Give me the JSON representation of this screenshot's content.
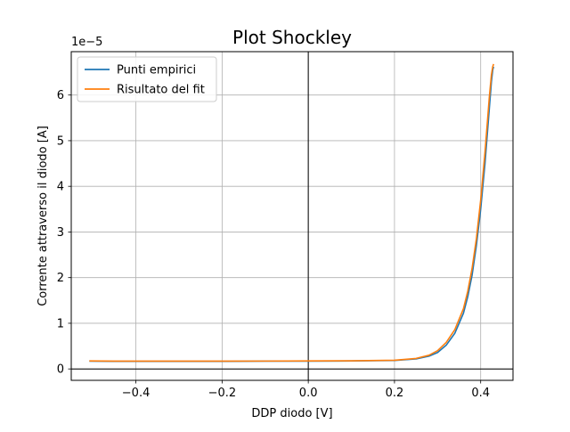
{
  "chart_data": {
    "type": "line",
    "title": "Plot Shockley",
    "xlabel": "DDP diodo [V]",
    "ylabel": "Corrente attraverso il diodo [A]",
    "y_offset_label": "1e−5",
    "xlim": [
      -0.55,
      0.475
    ],
    "ylim": [
      -0.25,
      6.95
    ],
    "y_scale_factor": 1e-05,
    "grid": true,
    "legend_position": "top-left",
    "x_ticks": [
      {
        "value": -0.4,
        "label": "−0.4"
      },
      {
        "value": -0.2,
        "label": "−0.2"
      },
      {
        "value": 0.0,
        "label": "0.0"
      },
      {
        "value": 0.2,
        "label": "0.2"
      },
      {
        "value": 0.4,
        "label": "0.4"
      }
    ],
    "y_ticks": [
      {
        "value": 0,
        "label": "0"
      },
      {
        "value": 1,
        "label": "1"
      },
      {
        "value": 2,
        "label": "2"
      },
      {
        "value": 3,
        "label": "3"
      },
      {
        "value": 4,
        "label": "4"
      },
      {
        "value": 5,
        "label": "5"
      },
      {
        "value": 6,
        "label": "6"
      }
    ],
    "series": [
      {
        "name": "Punti empirici",
        "color": "#1f77b4",
        "x": [
          -0.508,
          -0.45,
          -0.4,
          -0.3,
          -0.2,
          -0.1,
          0.0,
          0.1,
          0.2,
          0.25,
          0.28,
          0.3,
          0.32,
          0.34,
          0.36,
          0.37,
          0.38,
          0.39,
          0.4,
          0.41,
          0.42,
          0.425,
          0.428,
          0.43
        ],
        "y": [
          0.17,
          0.165,
          0.165,
          0.165,
          0.165,
          0.17,
          0.17,
          0.175,
          0.185,
          0.22,
          0.28,
          0.36,
          0.52,
          0.78,
          1.22,
          1.58,
          2.05,
          2.7,
          3.5,
          4.5,
          5.7,
          6.3,
          6.55,
          6.62
        ]
      },
      {
        "name": "Risultato del fit",
        "color": "#ff7f0e",
        "x": [
          -0.508,
          -0.45,
          -0.4,
          -0.3,
          -0.2,
          -0.1,
          0.0,
          0.1,
          0.2,
          0.25,
          0.28,
          0.3,
          0.32,
          0.34,
          0.36,
          0.37,
          0.38,
          0.39,
          0.4,
          0.41,
          0.42,
          0.425,
          0.428,
          0.43
        ],
        "y": [
          0.175,
          0.17,
          0.17,
          0.17,
          0.17,
          0.172,
          0.175,
          0.178,
          0.19,
          0.23,
          0.3,
          0.4,
          0.58,
          0.86,
          1.32,
          1.7,
          2.2,
          2.85,
          3.7,
          4.75,
          5.95,
          6.45,
          6.62,
          6.68
        ]
      }
    ]
  }
}
